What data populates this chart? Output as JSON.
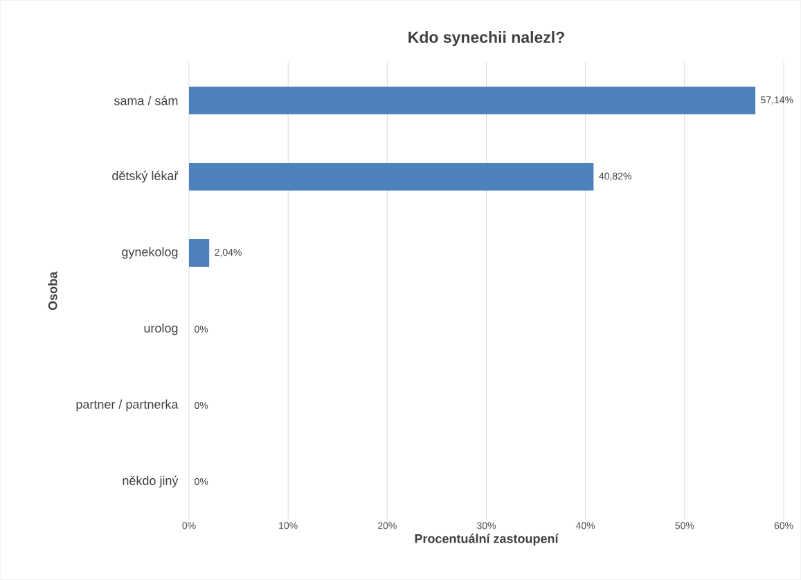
{
  "chart_data": {
    "type": "bar",
    "orientation": "horizontal",
    "title": "Kdo synechii nalezl?",
    "xlabel": "Procentuální zastoupení",
    "ylabel": "Osoba",
    "categories": [
      "sama / sám",
      "dětský lékař",
      "gynekolog",
      "urolog",
      "partner / partnerka",
      "někdo jiný"
    ],
    "values": [
      57.14,
      40.82,
      2.04,
      0,
      0,
      0
    ],
    "value_labels": [
      "57,14%",
      "40,82%",
      "2,04%",
      "0%",
      "0%",
      "0%"
    ],
    "color": "#4f81bd",
    "xlim": [
      0,
      60
    ],
    "xticks": [
      {
        "value": 0,
        "label": "0%"
      },
      {
        "value": 10,
        "label": "10%"
      },
      {
        "value": 20,
        "label": "20%"
      },
      {
        "value": 30,
        "label": "30%"
      },
      {
        "value": 40,
        "label": "40%"
      },
      {
        "value": 50,
        "label": "50%"
      },
      {
        "value": 60,
        "label": "60%"
      }
    ],
    "grid": "x"
  }
}
